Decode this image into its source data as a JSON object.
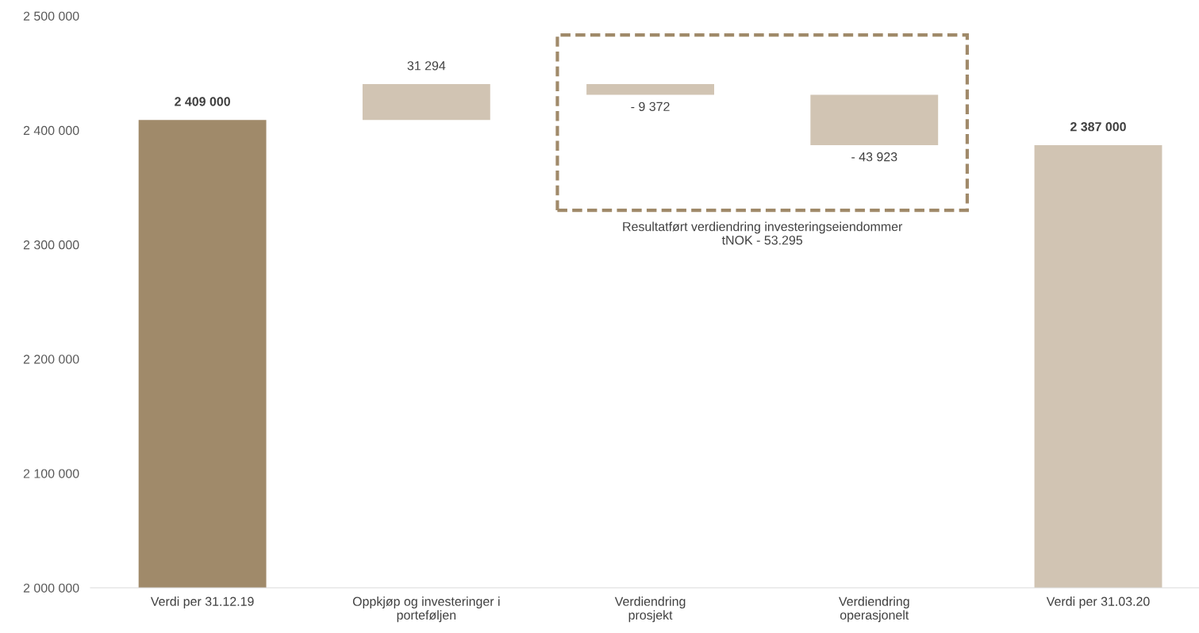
{
  "chart_data": {
    "type": "bar",
    "categories": [
      "Verdi per 31.12.19",
      "Oppkjøp og investeringer i\nporteføljen",
      "Verdiendring\nprosjekt",
      "Verdiendring\noperasjonelt",
      "Verdi per 31.03.20"
    ],
    "values": [
      409000,
      31294,
      -9372,
      -43923,
      387000
    ],
    "base": [
      2000000,
      2409000,
      2440294,
      2430922,
      2000000
    ],
    "colors": [
      "#a08a6a",
      "#d1c4b3",
      "#d1c4b3",
      "#d1c4b3",
      "#d1c4b3"
    ],
    "value_labels": [
      "2 409 000",
      "31 294",
      "- 9 372",
      "- 43 923",
      "2 387 000"
    ],
    "ylim": [
      2000000,
      2500000
    ],
    "yticks": [
      {
        "value": 2000000,
        "label": "2 000 000"
      },
      {
        "value": 2100000,
        "label": "2 100 000"
      },
      {
        "value": 2200000,
        "label": "2 200 000"
      },
      {
        "value": 2300000,
        "label": "2 300 000"
      },
      {
        "value": 2400000,
        "label": "2 400 000"
      },
      {
        "value": 2500000,
        "label": "2 500 000"
      }
    ],
    "annotations": [
      "Resultatført verdiendring investeringseiendommer\ntNOK - 53.295"
    ],
    "grid": false,
    "legend": false
  }
}
